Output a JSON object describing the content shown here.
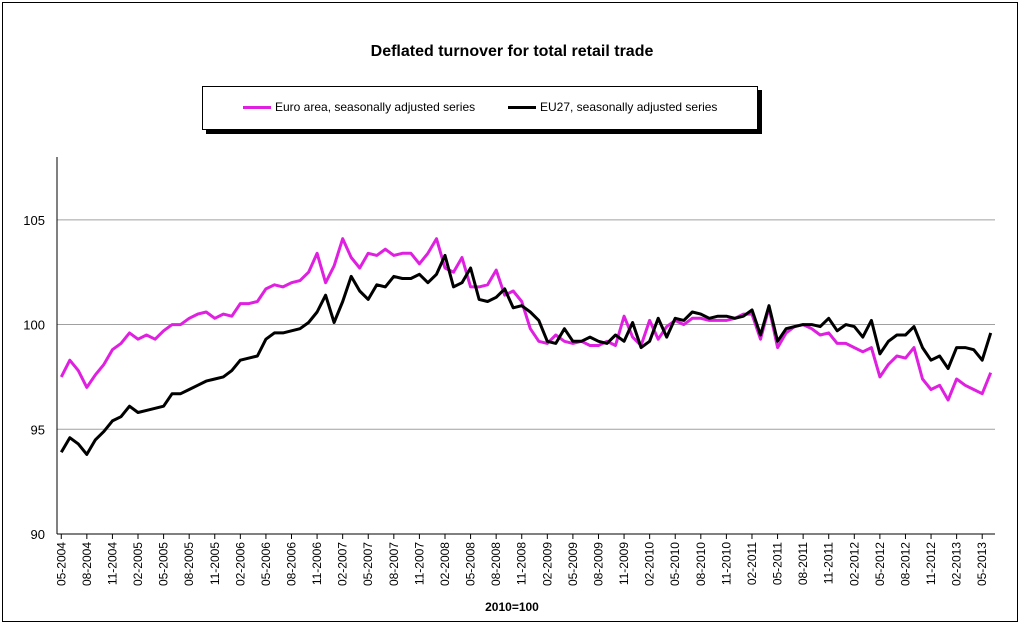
{
  "chart_data": {
    "type": "line",
    "title": "Deflated turnover for total retail trade",
    "xlabel": "2010=100",
    "ylabel": "",
    "ylim": [
      90,
      108
    ],
    "yticks": [
      90,
      95,
      100,
      105
    ],
    "grid": true,
    "legend_position": "top",
    "x_start": "05-2004",
    "x_tick_labels": [
      "05-2004",
      "08-2004",
      "11-2004",
      "02-2005",
      "05-2005",
      "08-2005",
      "11-2005",
      "02-2006",
      "05-2006",
      "08-2006",
      "11-2006",
      "02-2007",
      "05-2007",
      "08-2007",
      "11-2007",
      "02-2008",
      "05-2008",
      "08-2008",
      "11-2008",
      "02-2009",
      "05-2009",
      "08-2009",
      "11-2009",
      "02-2010",
      "05-2010",
      "08-2010",
      "11-2010",
      "02-2011",
      "05-2011",
      "08-2011",
      "11-2011",
      "02-2012",
      "05-2012",
      "08-2012",
      "11-2012",
      "02-2013",
      "05-2013"
    ],
    "series": [
      {
        "name": "Euro area, seasonally adjusted series",
        "color": "#e020e0",
        "values": [
          97.5,
          98.3,
          97.8,
          97.0,
          97.6,
          98.1,
          98.8,
          99.1,
          99.6,
          99.3,
          99.5,
          99.3,
          99.7,
          100.0,
          100.0,
          100.3,
          100.5,
          100.6,
          100.3,
          100.5,
          100.4,
          101.0,
          101.0,
          101.1,
          101.7,
          101.9,
          101.8,
          102.0,
          102.1,
          102.5,
          103.4,
          102.0,
          102.8,
          104.1,
          103.2,
          102.7,
          103.4,
          103.3,
          103.6,
          103.3,
          103.4,
          103.4,
          102.9,
          103.4,
          104.1,
          102.7,
          102.5,
          103.2,
          101.8,
          101.8,
          101.9,
          102.6,
          101.4,
          101.6,
          101.1,
          99.8,
          99.2,
          99.1,
          99.5,
          99.2,
          99.1,
          99.2,
          99.0,
          99.0,
          99.2,
          99.0,
          100.4,
          99.4,
          99.0,
          100.2,
          99.3,
          99.9,
          100.2,
          100.0,
          100.3,
          100.3,
          100.2,
          100.2,
          100.2,
          100.3,
          100.5,
          100.5,
          99.3,
          100.8,
          98.9,
          99.6,
          99.9,
          100.0,
          99.8,
          99.5,
          99.6,
          99.1,
          99.1,
          98.9,
          98.7,
          98.9,
          97.5,
          98.1,
          98.5,
          98.4,
          98.9,
          97.4,
          96.9,
          97.1,
          96.4,
          97.4,
          97.1,
          96.9,
          96.7,
          97.7
        ]
      },
      {
        "name": "EU27, seasonally adjusted series",
        "color": "#000000",
        "values": [
          93.9,
          94.6,
          94.3,
          93.8,
          94.5,
          94.9,
          95.4,
          95.6,
          96.1,
          95.8,
          95.9,
          96.0,
          96.1,
          96.7,
          96.7,
          96.9,
          97.1,
          97.3,
          97.4,
          97.5,
          97.8,
          98.3,
          98.4,
          98.5,
          99.3,
          99.6,
          99.6,
          99.7,
          99.8,
          100.1,
          100.6,
          101.4,
          100.1,
          101.1,
          102.3,
          101.6,
          101.2,
          101.9,
          101.8,
          102.3,
          102.2,
          102.2,
          102.4,
          102.0,
          102.4,
          103.3,
          101.8,
          102.0,
          102.7,
          101.2,
          101.1,
          101.3,
          101.7,
          100.8,
          100.9,
          100.6,
          100.2,
          99.2,
          99.1,
          99.8,
          99.2,
          99.2,
          99.4,
          99.2,
          99.1,
          99.5,
          99.2,
          100.1,
          98.9,
          99.2,
          100.3,
          99.4,
          100.3,
          100.2,
          100.6,
          100.5,
          100.3,
          100.4,
          100.4,
          100.3,
          100.4,
          100.7,
          99.5,
          100.9,
          99.2,
          99.8,
          99.9,
          100.0,
          100.0,
          99.9,
          100.3,
          99.7,
          100.0,
          99.9,
          99.4,
          100.2,
          98.6,
          99.2,
          99.5,
          99.5,
          99.9,
          98.9,
          98.3,
          98.5,
          97.9,
          98.9,
          98.9,
          98.8,
          98.3,
          99.6
        ]
      }
    ]
  }
}
